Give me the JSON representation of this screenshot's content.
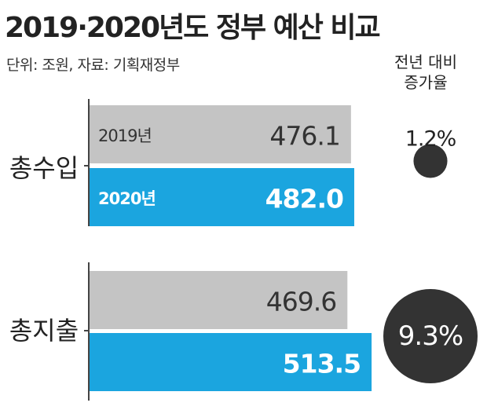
{
  "title": "2019·2020년도 정부 예산 비교",
  "subtitle": "단위: 조원, 자료: 기획재정부",
  "rate_header": [
    "전년 대비",
    "증가율"
  ],
  "colors": {
    "y2019": "#c4c4c4",
    "y2020": "#1ba5df",
    "circle": "#333333",
    "axis": "#444444"
  },
  "chart_data": {
    "type": "bar",
    "orientation": "horizontal",
    "categories": [
      "총수입",
      "총지출"
    ],
    "series": [
      {
        "name": "2019년",
        "values": [
          476.1,
          469.6
        ]
      },
      {
        "name": "2020년",
        "values": [
          482.0,
          513.5
        ]
      }
    ],
    "value_labels": [
      [
        "476.1",
        "482.0"
      ],
      [
        "469.6",
        "513.5"
      ]
    ],
    "growth_rate_labels": [
      "1.2%",
      "9.3%"
    ],
    "growth_rates": [
      1.2,
      9.3
    ],
    "unit": "조원"
  }
}
